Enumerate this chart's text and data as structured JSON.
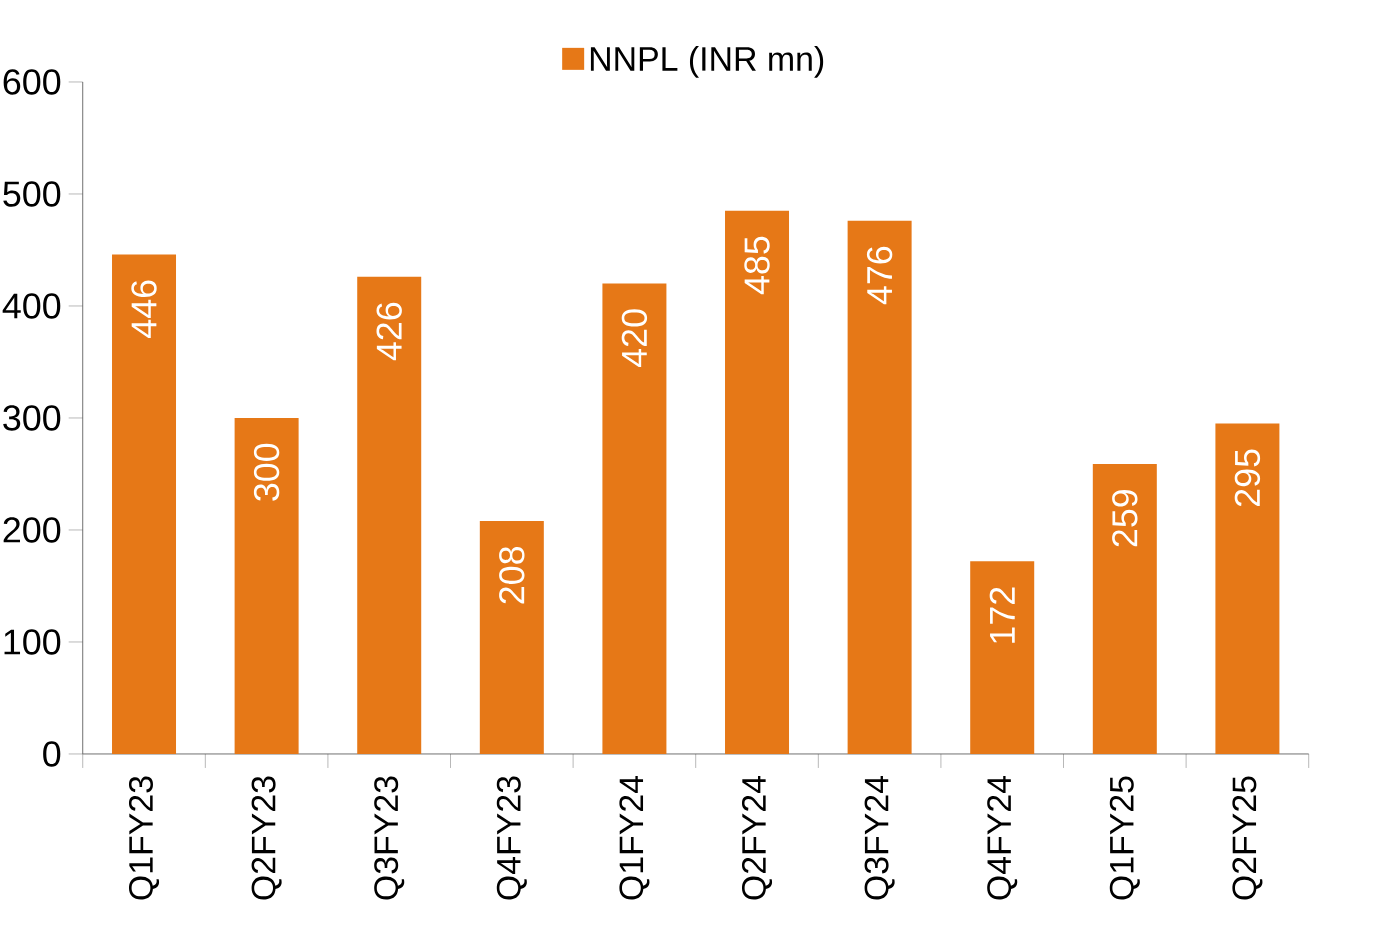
{
  "chart_data": {
    "type": "bar",
    "categories": [
      "Q1FY23",
      "Q2FY23",
      "Q3FY23",
      "Q4FY23",
      "Q1FY24",
      "Q2FY24",
      "Q3FY24",
      "Q4FY24",
      "Q1FY25",
      "Q2FY25"
    ],
    "series": [
      {
        "name": "NNPL (INR mn)",
        "color": "#e67817",
        "values": [
          446,
          300,
          426,
          208,
          420,
          485,
          476,
          172,
          259,
          295
        ]
      }
    ],
    "ylim": [
      0,
      600
    ],
    "yticks": [
      0,
      100,
      200,
      300,
      400,
      500,
      600
    ],
    "data_labels": true,
    "legend": "top"
  }
}
